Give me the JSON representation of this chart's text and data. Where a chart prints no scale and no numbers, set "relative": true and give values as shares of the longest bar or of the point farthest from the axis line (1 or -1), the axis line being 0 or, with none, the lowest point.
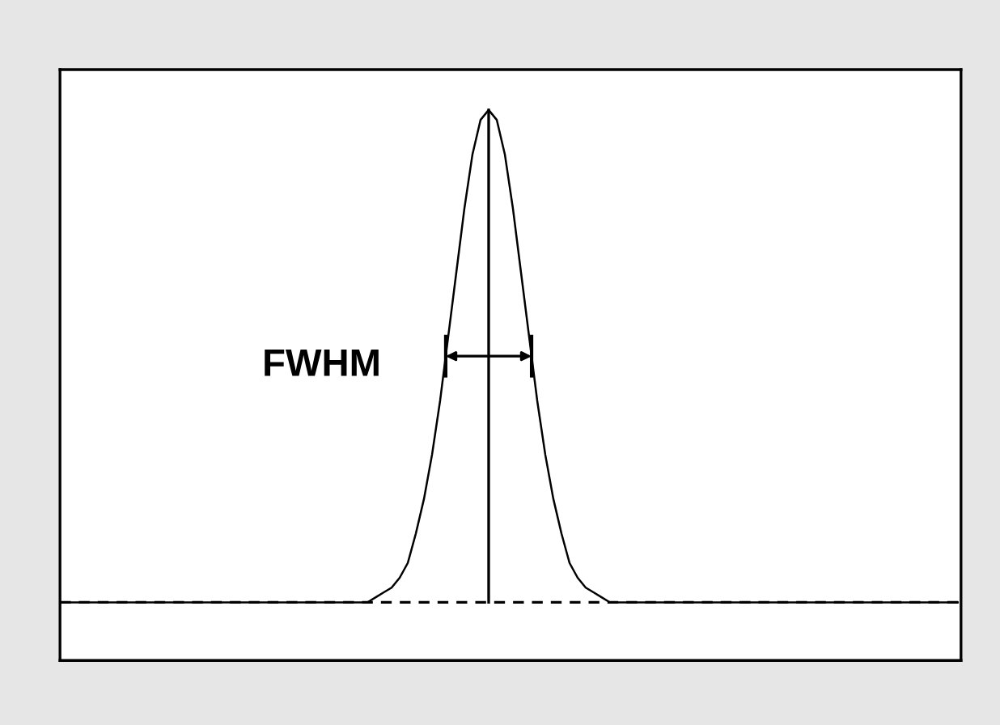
{
  "chart_data": {
    "type": "line",
    "relative": true,
    "categories": [
      null,
      null,
      null,
      null,
      null,
      null,
      null,
      null,
      null,
      null,
      null,
      null,
      null,
      null,
      null,
      null,
      null,
      null,
      null,
      null,
      null,
      null,
      null,
      null,
      null,
      null,
      null,
      null,
      null,
      null,
      null,
      null,
      null,
      null,
      null,
      null,
      null,
      null,
      null,
      null,
      null,
      null,
      null,
      null,
      null,
      null,
      null,
      null,
      null,
      null,
      null,
      null,
      null,
      null,
      null,
      null,
      null,
      null,
      null,
      null,
      null,
      null,
      null,
      null,
      null,
      null,
      null,
      null,
      null,
      null,
      null,
      null,
      null,
      null,
      null,
      null,
      null,
      null,
      null,
      null,
      null,
      null,
      null,
      null,
      null,
      null,
      null,
      null,
      null,
      null,
      null,
      null,
      null,
      null,
      null,
      null,
      null,
      null,
      null,
      null,
      null,
      null,
      null,
      null,
      null,
      null,
      null,
      null,
      null,
      null,
      null
    ],
    "series": [
      {
        "color": "#000000",
        "values": [
          0,
          0,
          0,
          0,
          0,
          0,
          0,
          0,
          0,
          0,
          0,
          0,
          0,
          0,
          0,
          0,
          0,
          0,
          0,
          0,
          0,
          0,
          0,
          0,
          0,
          0,
          0,
          0,
          0,
          0,
          0,
          0,
          0,
          0,
          0,
          0,
          0,
          0,
          0.01,
          0.02,
          0.03,
          0.05,
          0.08,
          0.14,
          0.21,
          0.3,
          0.41,
          0.54,
          0.67,
          0.8,
          0.91,
          0.98,
          1,
          0.98,
          0.91,
          0.8,
          0.67,
          0.54,
          0.41,
          0.3,
          0.21,
          0.14,
          0.08,
          0.05,
          0.03,
          0.02,
          0.01,
          0,
          0,
          0,
          0,
          0,
          0,
          0,
          0,
          0,
          0,
          0,
          0,
          0,
          0,
          0,
          0,
          0,
          0,
          0,
          0,
          0,
          0,
          0,
          0,
          0,
          0,
          0,
          0,
          0,
          0,
          0,
          0,
          0,
          0,
          0,
          0,
          0,
          0,
          0,
          0,
          0,
          0,
          0,
          0
        ]
      }
    ],
    "ref_lines": [
      {
        "axis": "y",
        "value": 0,
        "color": "#000000",
        "line_style": "dashed"
      }
    ],
    "annotations": [
      "FWHM"
    ],
    "grid": false
  }
}
